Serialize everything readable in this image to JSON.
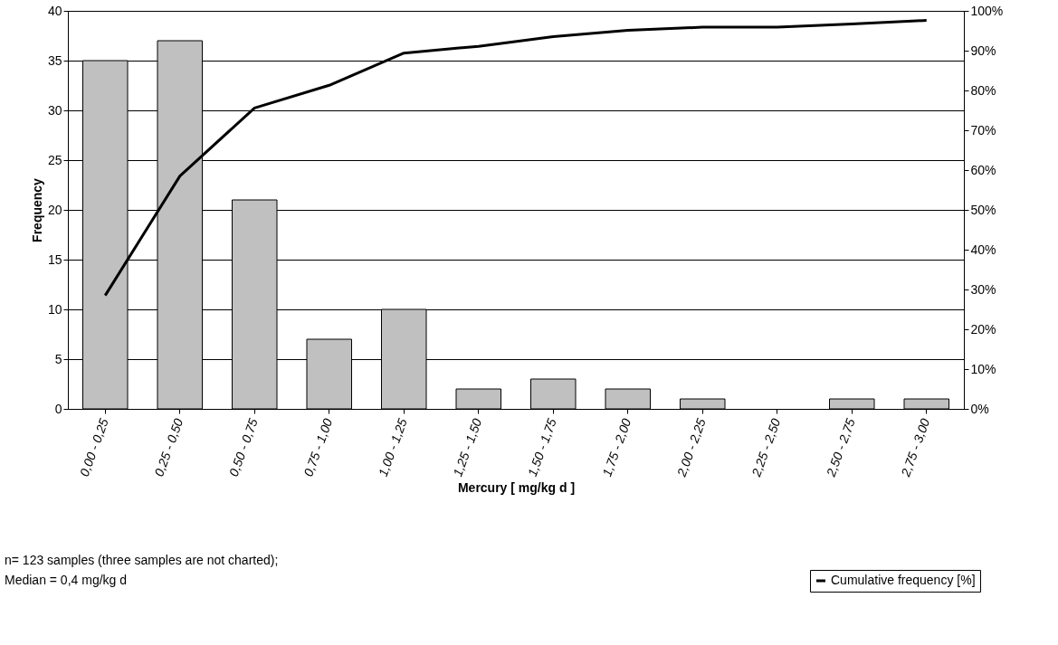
{
  "chart_data": {
    "type": "bar",
    "xlabel": "Mercury [ mg/kg d ]",
    "ylabel": "Frequency",
    "categories": [
      "0,00 - 0,25",
      "0,25 - 0,50",
      "0,50 - 0,75",
      "0,75 - 1,00",
      "1,00 - 1,25",
      "1,25 - 1,50",
      "1,50 - 1,75",
      "1,75 - 2,00",
      "2,00 - 2,25",
      "2,25 - 2,50",
      "2,50 - 2,75",
      "2,75 - 3,00"
    ],
    "series": [
      {
        "color": "#c0c0c0",
        "values": [
          35,
          37,
          21,
          7,
          10,
          2,
          3,
          2,
          1,
          0,
          1,
          1
        ]
      },
      {
        "type": "line",
        "axis": "y2",
        "name": "Cumulative frequency [%]",
        "color": "#000000",
        "values": [
          28.5,
          58.5,
          75.6,
          81.3,
          89.4,
          91.1,
          93.5,
          95.1,
          95.9,
          95.9,
          96.7,
          97.6
        ]
      }
    ],
    "ylim": [
      0,
      40
    ],
    "yticks": [
      0,
      5,
      10,
      15,
      20,
      25,
      30,
      35,
      40
    ],
    "y2lim": [
      0,
      100
    ],
    "y2ticks": [
      {
        "value": 0,
        "label": "0%"
      },
      {
        "value": 10,
        "label": "10%"
      },
      {
        "value": 20,
        "label": "20%"
      },
      {
        "value": 30,
        "label": "30%"
      },
      {
        "value": 40,
        "label": "40%"
      },
      {
        "value": 50,
        "label": "50%"
      },
      {
        "value": 60,
        "label": "60%"
      },
      {
        "value": 70,
        "label": "70%"
      },
      {
        "value": 80,
        "label": "80%"
      },
      {
        "value": 90,
        "label": "90%"
      },
      {
        "value": 100,
        "label": "100%"
      }
    ],
    "grid": "y",
    "legend": "bottom right",
    "marker": "none",
    "line_style": "solid",
    "annotations": [
      "n= 123 samples (three samples are not charted);",
      "Median = 0,4 mg/kg d"
    ]
  }
}
